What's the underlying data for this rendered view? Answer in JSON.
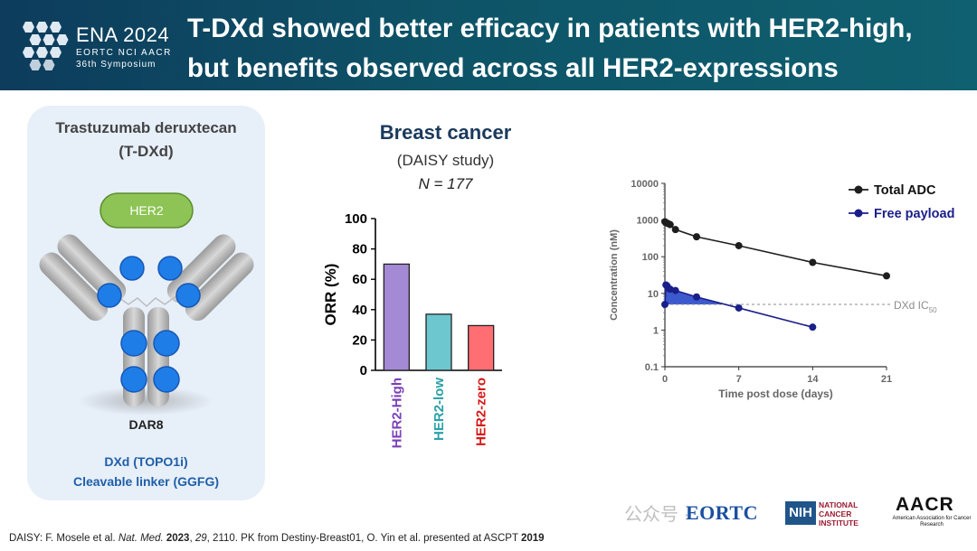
{
  "header": {
    "conference": "ENA 2024",
    "orgs": "EORTC  NCI  AACR",
    "symposium": "36th Symposium",
    "title_line1": "T-DXd showed better efficacy in patients with HER2-high,",
    "title_line2": "but benefits observed across all HER2-expressions"
  },
  "left_panel": {
    "drug_name": "Trastuzumab deruxtecan",
    "drug_abbrev": "(T-DXd)",
    "target_label": "HER2",
    "dar": "DAR8",
    "payload": "DXd (TOPO1i)",
    "linker": "Cleavable linker (GGFG)"
  },
  "orr_panel": {
    "heading": "Breast cancer",
    "study": "(DAISY study)",
    "n": "N = 177"
  },
  "chart_data": [
    {
      "type": "bar",
      "title": "Breast cancer",
      "ylabel": "ORR (%)",
      "xlabel": "",
      "ylim": [
        0,
        100
      ],
      "yticks": [
        0,
        20,
        40,
        60,
        80,
        100
      ],
      "categories": [
        "HER2-High",
        "HER2-low",
        "HER2-zero"
      ],
      "values": [
        70,
        37,
        29.5
      ],
      "colors": [
        "#a48ad4",
        "#6cc7cf",
        "#ff6e72"
      ],
      "label_colors": [
        "#7a3fb8",
        "#2aa1a8",
        "#d81818"
      ]
    },
    {
      "type": "line",
      "xlabel": "Time post dose (days)",
      "ylabel": "Concentration (nM)",
      "yscale": "log",
      "ylim": [
        0.1,
        10000
      ],
      "yticks": [
        0.1,
        1,
        10,
        100,
        1000,
        10000
      ],
      "ytick_labels": [
        "0.1",
        "1",
        "10",
        "100",
        "1000",
        "10000"
      ],
      "xlim": [
        0,
        21
      ],
      "xticks": [
        0,
        7,
        14,
        21
      ],
      "threshold": {
        "value": 5,
        "label": "DXd IC",
        "sub": "50",
        "color": "#8c8c8c"
      },
      "series": [
        {
          "name": "Total ADC",
          "color": "#1e1e1e",
          "x": [
            0,
            0.1,
            0.3,
            0.5,
            1,
            3,
            7,
            14,
            21
          ],
          "y": [
            900,
            850,
            800,
            750,
            550,
            350,
            200,
            70,
            30
          ]
        },
        {
          "name": "Free payload",
          "color": "#1b1f8a",
          "x": [
            0,
            0.1,
            0.2,
            0.3,
            0.5,
            1,
            3,
            7,
            14
          ],
          "y": [
            5,
            17,
            16,
            14,
            13,
            12,
            8,
            4,
            1.2
          ]
        }
      ]
    }
  ],
  "footer": {
    "ref_a": "DAISY: F. Mosele et al. ",
    "ref_journal": "Nat. Med.",
    "ref_b": " ",
    "ref_year": "2023",
    "ref_c": ", ",
    "ref_vol": "29",
    "ref_d": ", 2110. PK from Destiny-Breast01, O. Yin et al. presented at ASCPT ",
    "ref_year2": "2019"
  },
  "logos": {
    "watermark": "公众号 ·",
    "eortc": "EORTC",
    "nih": "NIH",
    "nci_line1": "NATIONAL",
    "nci_line2": "CANCER",
    "nci_line3": "INSTITUTE",
    "aacr": "AACR",
    "aacr_sub": "American Association for Cancer Research"
  }
}
